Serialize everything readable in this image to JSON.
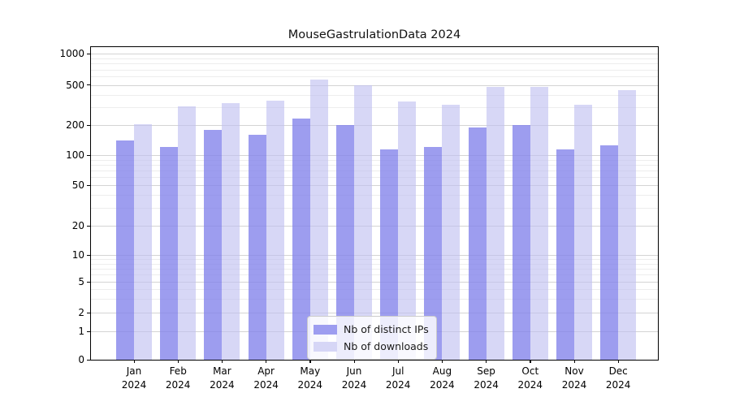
{
  "title": "MouseGastrulationData 2024",
  "chart_data": {
    "type": "bar",
    "title": "MouseGastrulationData 2024",
    "categories": [
      "Jan 2024",
      "Feb 2024",
      "Mar 2024",
      "Apr 2024",
      "May 2024",
      "Jun 2024",
      "Jul 2024",
      "Aug 2024",
      "Sep 2024",
      "Oct 2024",
      "Nov 2024",
      "Dec 2024"
    ],
    "series": [
      {
        "name": "Nb of distinct IPs",
        "color": "#9d9df0",
        "fill": "rgba(130,130,235,0.78)",
        "values": [
          140,
          120,
          180,
          160,
          230,
          200,
          115,
          120,
          190,
          200,
          115,
          125
        ]
      },
      {
        "name": "Nb of downloads",
        "color": "#d6d6f6",
        "fill": "rgba(190,190,240,0.62)",
        "values": [
          205,
          305,
          330,
          350,
          565,
          500,
          340,
          320,
          475,
          480,
          315,
          445
        ]
      }
    ],
    "xlabel": "",
    "ylabel": "",
    "yscale": "symlog",
    "y_ticks": [
      0,
      1,
      2,
      5,
      10,
      20,
      50,
      100,
      200,
      500,
      1000
    ],
    "y_minor_ticks": [
      3,
      4,
      6,
      7,
      8,
      9,
      30,
      40,
      60,
      70,
      80,
      90,
      300,
      400,
      600,
      700,
      800,
      900
    ],
    "ylim": [
      0,
      1175
    ],
    "grid": "horizontal major and minor gridlines",
    "legend_position": "inside lower center",
    "legend_items": [
      "Nb of distinct IPs",
      "Nb of downloads"
    ]
  },
  "colors": {
    "background": "#ffffff",
    "bar_dark": "#9d9df0",
    "bar_light": "#d6d6f6",
    "grid_major": "#d4d4d4",
    "grid_minor": "#ededed",
    "axis": "#000000",
    "legend_border": "#cccccc"
  }
}
